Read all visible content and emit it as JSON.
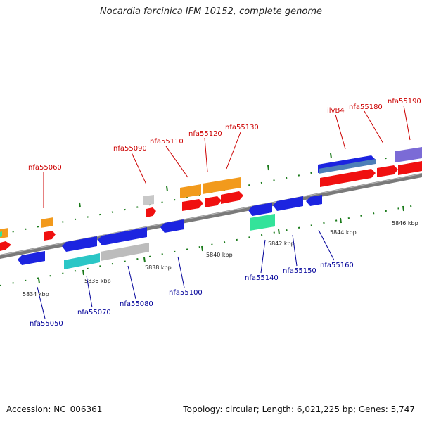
{
  "title": "Nocardia farcinica IFM 10152, complete genome",
  "footer": {
    "accession": "Accession: NC_006361",
    "stats": "Topology: circular; Length: 6,021,225 bp; Genes: 5,747"
  },
  "colors": {
    "forward_label": "#cc0000",
    "reverse_label": "#000099",
    "orange": "#f29a1c",
    "red": "#f01010",
    "blue": "#1c24e0",
    "cyan": "#2bc6c6",
    "gray": "#bcbcbc",
    "green": "#33e39a",
    "purple": "#7b6bd6",
    "steel": "#4d7fb8",
    "tick": "#1a7a1a"
  },
  "scale_labels": [
    "5834 kbp",
    "5836 kbp",
    "5838 kbp",
    "5840 kbp",
    "5842 kbp",
    "5844 kbp",
    "5846 kbp"
  ],
  "forward_genes": [
    "nfa55060",
    "nfa55090",
    "nfa55110",
    "nfa55120",
    "nfa55130",
    "ilvB4",
    "nfa55180",
    "nfa55190"
  ],
  "reverse_genes": [
    "nfa55050",
    "nfa55070",
    "nfa55080",
    "nfa55100",
    "nfa55140",
    "nfa55150",
    "nfa55160"
  ]
}
